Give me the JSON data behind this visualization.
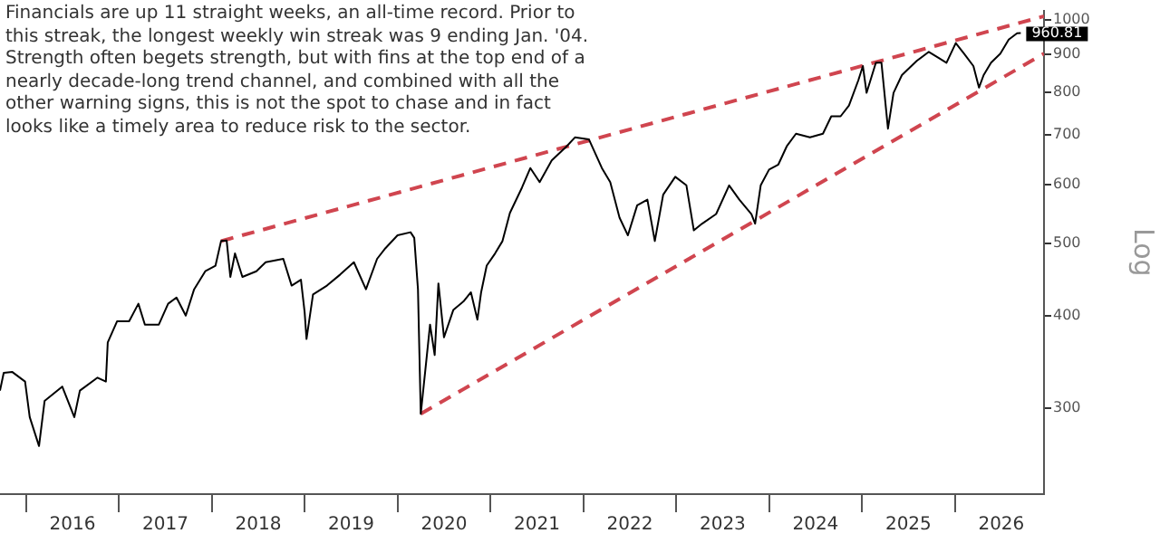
{
  "chart_data": {
    "type": "line",
    "ylabel": "Log",
    "log": true,
    "annotations": [
      "Financials are up 11 straight weeks, an all-time record. Prior to this streak, the longest weekly win streak was 9 ending Jan. '04. Strength often begets strength, but with fins at the top end of a nearly decade-long trend channel, and combined with all the other warning signs, this is not the spot to chase and in fact looks like a timely area to reduce risk to the sector."
    ],
    "xlim": [
      2015.72,
      2026.96
    ],
    "xticks": [
      {
        "value": 2016,
        "label": null
      },
      {
        "value": 2016.5,
        "label": "2016"
      },
      {
        "value": 2017,
        "label": null
      },
      {
        "value": 2017.5,
        "label": "2017"
      },
      {
        "value": 2018,
        "label": null
      },
      {
        "value": 2018.5,
        "label": "2018"
      },
      {
        "value": 2019,
        "label": null
      },
      {
        "value": 2019.5,
        "label": "2019"
      },
      {
        "value": 2020,
        "label": null
      },
      {
        "value": 2020.5,
        "label": "2020"
      },
      {
        "value": 2021,
        "label": null
      },
      {
        "value": 2021.5,
        "label": "2021"
      },
      {
        "value": 2022,
        "label": null
      },
      {
        "value": 2022.5,
        "label": "2022"
      },
      {
        "value": 2023,
        "label": null
      },
      {
        "value": 2023.5,
        "label": "2023"
      },
      {
        "value": 2024,
        "label": null
      },
      {
        "value": 2024.5,
        "label": "2024"
      },
      {
        "value": 2025,
        "label": null
      },
      {
        "value": 2025.5,
        "label": "2025"
      },
      {
        "value": 2026,
        "label": null
      },
      {
        "value": 2026.5,
        "label": "2026"
      }
    ],
    "ylim": [
      230,
      1030
    ],
    "yticks": [
      300,
      400,
      500,
      600,
      700,
      800,
      900,
      1000
    ],
    "series": [
      {
        "color": "#000000",
        "line_style": "solid",
        "x": [
          2015.72,
          2015.76,
          2015.85,
          2015.99,
          2016.04,
          2016.14,
          2016.2,
          2016.39,
          2016.52,
          2016.58,
          2016.77,
          2016.86,
          2016.88,
          2016.98,
          2017.11,
          2017.21,
          2017.28,
          2017.43,
          2017.53,
          2017.62,
          2017.72,
          2017.81,
          2017.93,
          2018.04,
          2018.1,
          2018.16,
          2018.2,
          2018.25,
          2018.33,
          2018.48,
          2018.58,
          2018.77,
          2018.86,
          2018.96,
          2019.0,
          2019.02,
          2019.09,
          2019.24,
          2019.38,
          2019.53,
          2019.66,
          2019.78,
          2019.87,
          2020.0,
          2020.14,
          2020.18,
          2020.22,
          2020.25,
          2020.31,
          2020.35,
          2020.4,
          2020.44,
          2020.5,
          2020.6,
          2020.71,
          2020.79,
          2020.86,
          2020.9,
          2020.96,
          2021.05,
          2021.13,
          2021.21,
          2021.34,
          2021.43,
          2021.53,
          2021.66,
          2021.82,
          2021.91,
          2022.06,
          2022.2,
          2022.29,
          2022.39,
          2022.48,
          2022.58,
          2022.69,
          2022.77,
          2022.86,
          2022.99,
          2023.11,
          2023.19,
          2023.28,
          2023.43,
          2023.57,
          2023.68,
          2023.81,
          2023.85,
          2023.91,
          2024.0,
          2024.1,
          2024.19,
          2024.29,
          2024.44,
          2024.58,
          2024.67,
          2024.77,
          2024.86,
          2024.96,
          2025.01,
          2025.05,
          2025.15,
          2025.21,
          2025.28,
          2025.34,
          2025.43,
          2025.59,
          2025.72,
          2025.82,
          2025.91,
          2026.01,
          2026.1,
          2026.2,
          2026.26,
          2026.31,
          2026.39,
          2026.49,
          2026.58,
          2026.67,
          2026.71
        ],
        "values": [
          317,
          335,
          336,
          326,
          292,
          267,
          307,
          321,
          292,
          317,
          330,
          326,
          368,
          393,
          393,
          415,
          389,
          389,
          415,
          423,
          400,
          434,
          459,
          467,
          504,
          505,
          451,
          485,
          451,
          459,
          472,
          477,
          439,
          447,
          404,
          372,
          427,
          439,
          454,
          472,
          434,
          477,
          493,
          513,
          518,
          509,
          434,
          295,
          348,
          389,
          354,
          442,
          374,
          407,
          418,
          430,
          395,
          430,
          467,
          485,
          504,
          550,
          595,
          632,
          605,
          647,
          676,
          695,
          691,
          632,
          605,
          542,
          513,
          563,
          573,
          504,
          582,
          615,
          599,
          521,
          532,
          548,
          599,
          573,
          548,
          532,
          599,
          629,
          639,
          676,
          703,
          695,
          703,
          742,
          742,
          767,
          829,
          867,
          798,
          876,
          876,
          714,
          798,
          843,
          881,
          906,
          890,
          876,
          931,
          901,
          867,
          811,
          843,
          876,
          901,
          941,
          960,
          960.81
        ],
        "value_labels": [
          null,
          null,
          null,
          null,
          null,
          null,
          null,
          null,
          null,
          null,
          null,
          null,
          null,
          null,
          null,
          null,
          null,
          null,
          null,
          null,
          null,
          null,
          null,
          null,
          null,
          null,
          null,
          null,
          null,
          null,
          null,
          null,
          null,
          null,
          null,
          null,
          null,
          null,
          null,
          null,
          null,
          null,
          null,
          null,
          null,
          null,
          null,
          null,
          null,
          null,
          null,
          null,
          null,
          null,
          null,
          null,
          null,
          null,
          null,
          null,
          null,
          null,
          null,
          null,
          null,
          null,
          null,
          null,
          null,
          null,
          null,
          null,
          null,
          null,
          null,
          null,
          null,
          null,
          null,
          null,
          null,
          null,
          null,
          null,
          null,
          null,
          null,
          null,
          null,
          null,
          null,
          null,
          null,
          null,
          null,
          null,
          null,
          null,
          null,
          null,
          null,
          null,
          null,
          null,
          null,
          null,
          null,
          null,
          null,
          null,
          null,
          null,
          null,
          null,
          null,
          null,
          null,
          "960.81"
        ]
      },
      {
        "color": "#d0454f",
        "line_style": "dashed",
        "x": [
          2018.1,
          2026.96
        ],
        "values": [
          504,
          1012
        ]
      },
      {
        "color": "#d0454f",
        "line_style": "dashed",
        "x": [
          2020.25,
          2026.96
        ],
        "values": [
          295,
          901
        ]
      }
    ]
  }
}
